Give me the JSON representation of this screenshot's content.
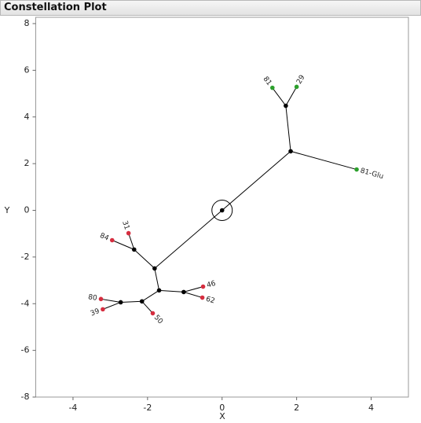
{
  "header": {
    "title": "Constellation Plot"
  },
  "chart_data": {
    "type": "constellation",
    "x_label": "X",
    "y_label": "Y",
    "xlim": [
      -5,
      5
    ],
    "xticks": [
      -4,
      -2,
      0,
      2,
      4
    ],
    "ylim": [
      -8,
      8
    ],
    "yticks": [
      -8,
      -6,
      -4,
      -2,
      0,
      2,
      4,
      6,
      8
    ],
    "nodes": [
      {
        "x": 0,
        "y": 0,
        "color": "#000000"
      },
      {
        "x": 1.84,
        "y": 2.53,
        "color": "#000000"
      },
      {
        "x": 1.71,
        "y": 4.48,
        "color": "#000000"
      },
      {
        "x": 1.35,
        "y": 5.25,
        "label": "81",
        "color": "#2ca02c"
      },
      {
        "x": 2.0,
        "y": 5.29,
        "label": "29",
        "color": "#2ca02c"
      },
      {
        "x": 3.61,
        "y": 1.75,
        "label": "81-Glu",
        "color": "#2ca02c"
      },
      {
        "x": -1.81,
        "y": -2.49,
        "color": "#000000"
      },
      {
        "x": -2.36,
        "y": -1.68,
        "color": "#000000"
      },
      {
        "x": -2.95,
        "y": -1.28,
        "label": "84",
        "color": "#d62d3f"
      },
      {
        "x": -2.51,
        "y": -0.98,
        "label": "31",
        "color": "#d62d3f"
      },
      {
        "x": -1.69,
        "y": -3.43,
        "color": "#000000"
      },
      {
        "x": -1.03,
        "y": -3.5,
        "color": "#000000"
      },
      {
        "x": -0.51,
        "y": -3.27,
        "label": "46",
        "color": "#d62d3f"
      },
      {
        "x": -0.53,
        "y": -3.74,
        "label": "62",
        "color": "#d62d3f"
      },
      {
        "x": -2.15,
        "y": -3.9,
        "color": "#000000"
      },
      {
        "x": -1.86,
        "y": -4.41,
        "label": "50",
        "color": "#d62d3f"
      },
      {
        "x": -2.72,
        "y": -3.94,
        "color": "#000000"
      },
      {
        "x": -3.25,
        "y": -3.8,
        "label": "80",
        "color": "#d62d3f"
      },
      {
        "x": -3.2,
        "y": -4.24,
        "label": "39",
        "color": "#d62d3f"
      }
    ],
    "edges": [
      [
        0,
        1
      ],
      [
        1,
        2
      ],
      [
        2,
        3
      ],
      [
        2,
        4
      ],
      [
        1,
        5
      ],
      [
        0,
        6
      ],
      [
        6,
        7
      ],
      [
        7,
        8
      ],
      [
        7,
        9
      ],
      [
        6,
        10
      ],
      [
        10,
        11
      ],
      [
        11,
        12
      ],
      [
        11,
        13
      ],
      [
        10,
        14
      ],
      [
        14,
        15
      ],
      [
        14,
        16
      ],
      [
        16,
        17
      ],
      [
        16,
        18
      ]
    ]
  }
}
